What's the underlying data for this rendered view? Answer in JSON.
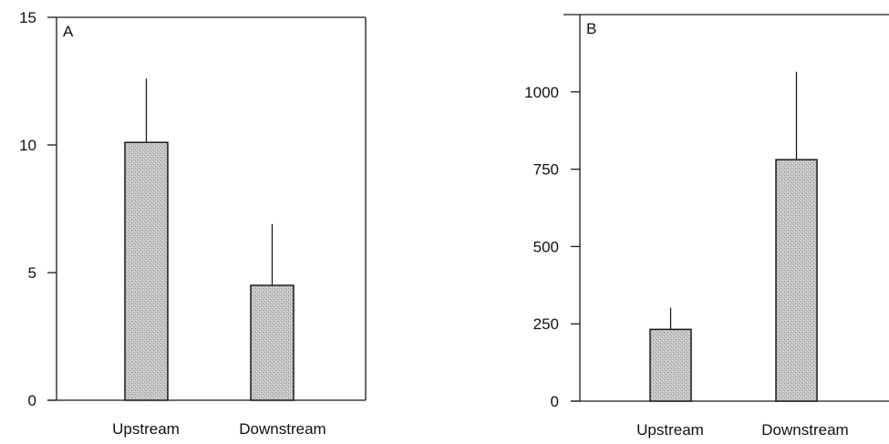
{
  "chart_data": [
    {
      "type": "bar",
      "panel_label": "A",
      "categories": [
        "Upstream",
        "Downstream"
      ],
      "values": [
        10.1,
        4.5
      ],
      "error_upper": [
        12.6,
        6.9
      ],
      "ylim": [
        0,
        15
      ],
      "yticks": [
        0,
        5,
        10,
        15
      ],
      "ytick_labels": [
        "0",
        "5",
        "10",
        "15"
      ],
      "title": "",
      "xlabel": "",
      "ylabel": "",
      "grid": false
    },
    {
      "type": "bar",
      "panel_label": "B",
      "categories": [
        "Upstream",
        "Downstream"
      ],
      "values": [
        232,
        781
      ],
      "error_upper": [
        302,
        1065
      ],
      "ylim": [
        0,
        1250
      ],
      "yticks": [
        0,
        250,
        500,
        750,
        1000
      ],
      "ytick_labels": [
        "0",
        "250",
        "500",
        "750",
        "1000"
      ],
      "title": "",
      "xlabel": "",
      "ylabel": "",
      "grid": false
    }
  ],
  "colors": {
    "bar_fill": "#bdbdbd",
    "bar_stroke": "#1a1a1a",
    "axis": "#1a1a1a",
    "text": "#111111"
  }
}
